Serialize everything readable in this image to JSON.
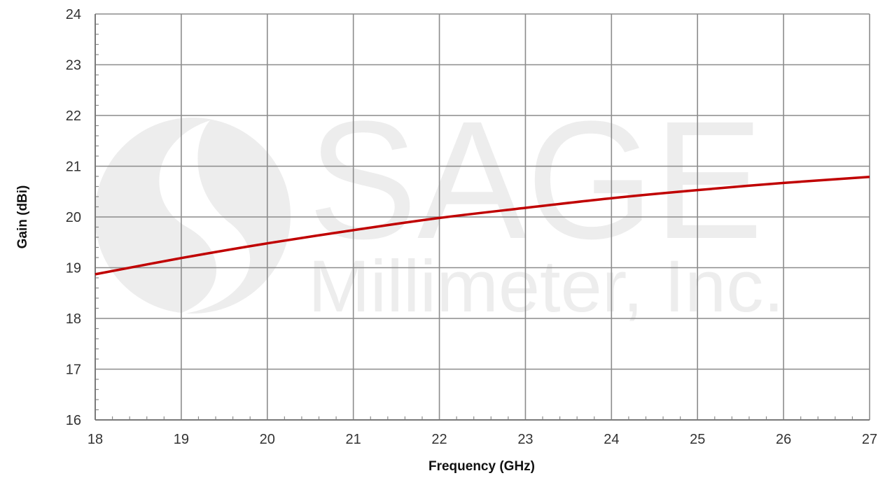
{
  "watermark": {
    "line1": "SAGE",
    "line2": "Millimeter, Inc."
  },
  "chart_data": {
    "type": "line",
    "title": "",
    "xlabel": "Frequency (GHz)",
    "ylabel": "Gain (dBi)",
    "xlim": [
      18,
      27
    ],
    "ylim": [
      16,
      24
    ],
    "x_ticks": [
      18,
      19,
      20,
      21,
      22,
      23,
      24,
      25,
      26,
      27
    ],
    "y_ticks": [
      16,
      17,
      18,
      19,
      20,
      21,
      22,
      23,
      24
    ],
    "x_minor_per_major": 5,
    "y_minor_per_major": 5,
    "grid": true,
    "legend": "none",
    "series": [
      {
        "color": "#c00000",
        "x": [
          18,
          19,
          20,
          21,
          22,
          23,
          24,
          25,
          26,
          27
        ],
        "values": [
          18.87,
          19.19,
          19.48,
          19.74,
          19.98,
          20.18,
          20.37,
          20.53,
          20.67,
          20.79
        ]
      }
    ]
  }
}
